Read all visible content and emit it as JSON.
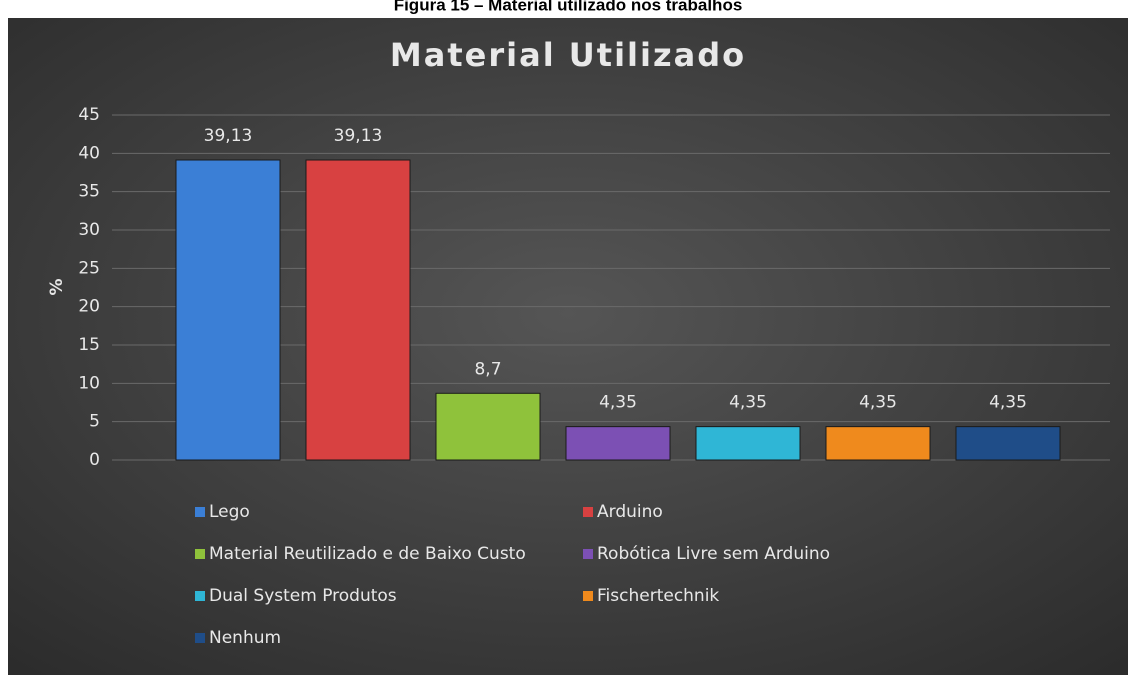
{
  "chart_data": {
    "type": "bar",
    "caption": "Figura 15 – Material utilizado nos trabalhos",
    "title": "Material Utilizado",
    "y_label": "%",
    "categories": [
      "Lego",
      "Arduino",
      "Material Reutilizado e de Baixo Custo",
      "Robótica Livre sem Arduino",
      "Dual System Produtos",
      "Fischertechnik",
      "Nenhum"
    ],
    "values": [
      39.13,
      39.13,
      8.7,
      4.35,
      4.35,
      4.35,
      4.35
    ],
    "value_labels": [
      "39,13",
      "39,13",
      "8,7",
      "4,35",
      "4,35",
      "4,35",
      "4,35"
    ],
    "colors": [
      "#3b7fd6",
      "#d84141",
      "#8fc23b",
      "#7c50b4",
      "#2fb6d6",
      "#ef8a1d",
      "#1f4d88"
    ],
    "ylim": [
      0,
      45
    ],
    "yticks": [
      0,
      5,
      10,
      15,
      20,
      25,
      30,
      35,
      40,
      45
    ],
    "grid": true,
    "legend": "bottom"
  }
}
